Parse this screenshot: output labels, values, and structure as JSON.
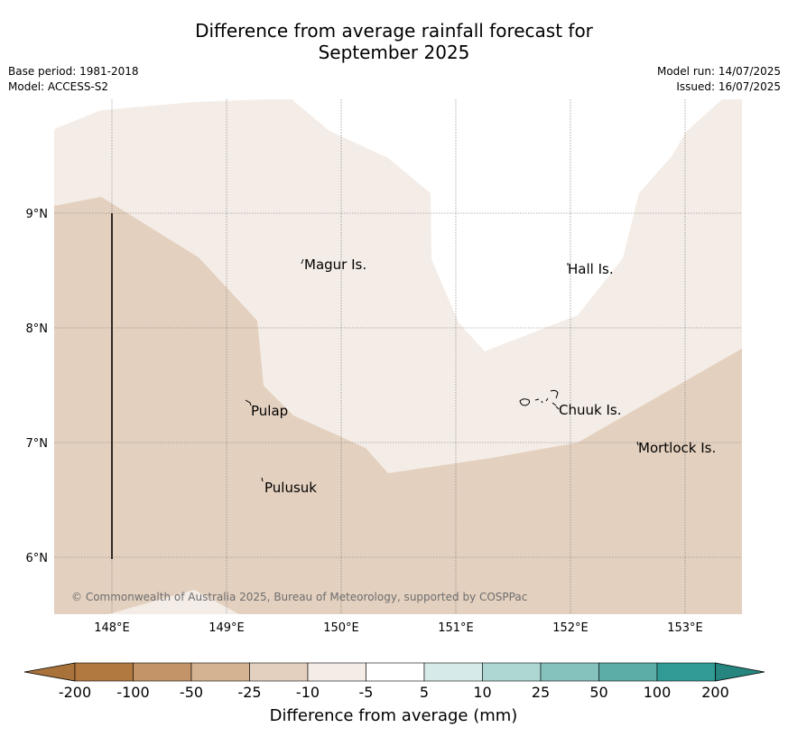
{
  "title": {
    "line1": "Difference from average rainfall forecast for",
    "line2": "September 2025"
  },
  "meta": {
    "base_period": "Base period: 1981-2018",
    "model": "Model: ACCESS-S2",
    "model_run": "Model run: 14/07/2025",
    "issued": "Issued: 16/07/2025"
  },
  "map": {
    "longitude_ticks": [
      "148°E",
      "149°E",
      "150°E",
      "151°E",
      "152°E",
      "153°E"
    ],
    "latitude_ticks": [
      "9°N",
      "8°N",
      "7°N",
      "6°N"
    ],
    "places": [
      {
        "key": "magur",
        "label": "Magur Is."
      },
      {
        "key": "hall",
        "label": "Hall Is."
      },
      {
        "key": "pulap",
        "label": "Pulap"
      },
      {
        "key": "chuuk",
        "label": "Chuuk Is."
      },
      {
        "key": "mortlock",
        "label": "Mortlock Is."
      },
      {
        "key": "pulusuk",
        "label": "Pulusuk"
      }
    ],
    "copyright": "© Commonwealth of Australia 2025, Bureau of Meteorology, supported by COSPPac"
  },
  "colorbar": {
    "labels": [
      "-200",
      "-100",
      "-50",
      "-25",
      "-10",
      "-5",
      "5",
      "10",
      "25",
      "50",
      "100",
      "200"
    ],
    "colors": [
      "#a9723a",
      "#b1793f",
      "#c29468",
      "#d3b390",
      "#e3d0bf",
      "#f4ece6",
      "#ffffff",
      "#d6ebe9",
      "#aed6d3",
      "#85c2be",
      "#5cada8",
      "#329b96",
      "#26857f"
    ],
    "title": "Difference from average (mm)"
  }
}
